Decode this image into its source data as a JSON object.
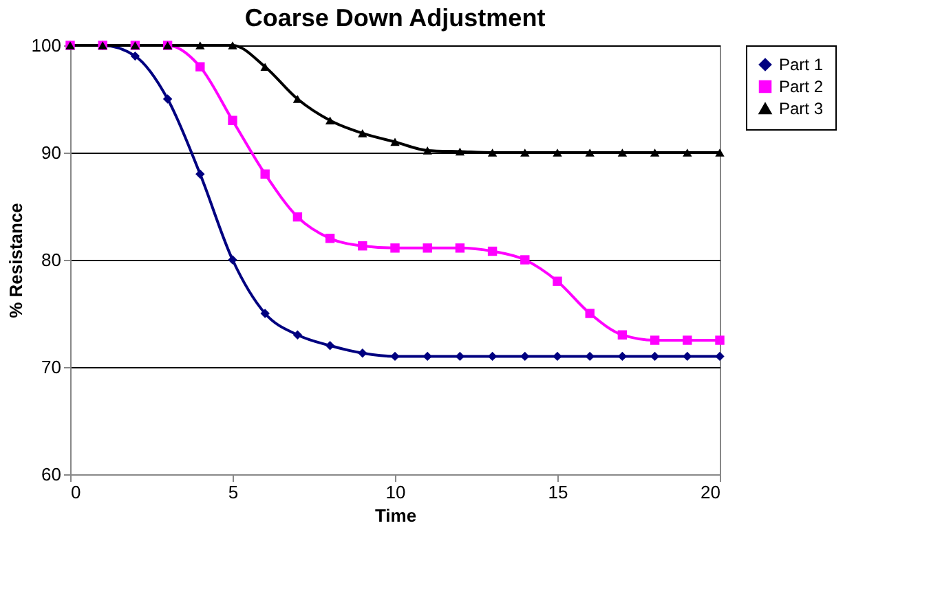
{
  "chart_data": {
    "type": "line",
    "title": "Coarse Down Adjustment",
    "xlabel": "Time",
    "ylabel": "% Resistance",
    "x": [
      0,
      1,
      2,
      3,
      4,
      5,
      6,
      7,
      8,
      9,
      10,
      11,
      12,
      13,
      14,
      15,
      16,
      17,
      18,
      19,
      20
    ],
    "series": [
      {
        "name": "Part 1",
        "color": "#000080",
        "marker": "diamond",
        "values": [
          100,
          100,
          99,
          95,
          88,
          80,
          75,
          73,
          72,
          71.3,
          71,
          71,
          71,
          71,
          71,
          71,
          71,
          71,
          71,
          71,
          71
        ]
      },
      {
        "name": "Part 2",
        "color": "#ff00ff",
        "marker": "square",
        "values": [
          100,
          100,
          100,
          100,
          98,
          93,
          88,
          84,
          82,
          81.3,
          81.1,
          81.1,
          81.1,
          80.8,
          80,
          78,
          75,
          73,
          72.5,
          72.5,
          72.5
        ]
      },
      {
        "name": "Part 3",
        "color": "#000000",
        "marker": "triangle",
        "values": [
          100,
          100,
          100,
          100,
          100,
          100,
          98,
          95,
          93,
          91.8,
          91,
          90.2,
          90.1,
          90,
          90,
          90,
          90,
          90,
          90,
          90,
          90
        ]
      }
    ],
    "xlim": [
      0,
      20
    ],
    "xticks": [
      0,
      5,
      10,
      15,
      20
    ],
    "ylim": [
      60,
      100
    ],
    "yticks": [
      60,
      70,
      80,
      90,
      100
    ],
    "grid": "y",
    "legend": "right",
    "line_style": "solid"
  }
}
